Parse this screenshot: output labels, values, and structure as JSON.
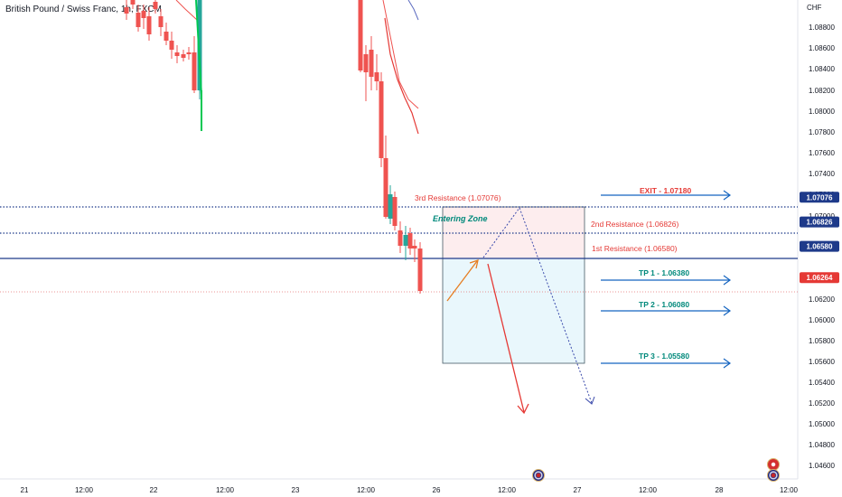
{
  "header": {
    "title": "British Pound / Swiss Franc, 1h, FXCM",
    "currency": "CHF"
  },
  "chart_data": {
    "type": "candlestick",
    "y_axis": {
      "range": [
        1.045,
        1.0895
      ],
      "ticks": [
        "1.08800",
        "1.08600",
        "1.08400",
        "1.08200",
        "1.08000",
        "1.07800",
        "1.07600",
        "1.07400",
        "1.07200",
        "1.07000",
        "1.06400",
        "1.06200",
        "1.06000",
        "1.05800",
        "1.05600",
        "1.05400",
        "1.05200",
        "1.05000",
        "1.04800",
        "1.04600"
      ]
    },
    "x_axis": {
      "ticks": [
        "21",
        "12:00",
        "22",
        "12:00",
        "23",
        "12:00",
        "26",
        "12:00",
        "27",
        "12:00",
        "28",
        "12:00"
      ]
    },
    "price_labels": [
      {
        "text": "1.07076",
        "value": 1.07076,
        "color": "#1e3a8a"
      },
      {
        "text": "1.06826",
        "value": 1.06826,
        "color": "#1e3a8a"
      },
      {
        "text": "1.06580",
        "value": 1.0658,
        "color": "#1e3a8a"
      },
      {
        "text": "1.06264",
        "value": 1.06264,
        "color": "#e53935"
      }
    ],
    "levels": [
      {
        "label": "3rd Resistance (1.07076)",
        "value": 1.07076,
        "style": "dotted",
        "color": "#1e3a8a"
      },
      {
        "label": "2nd Resistance (1.06826)",
        "value": 1.06826,
        "style": "dotted",
        "color": "#1e3a8a"
      },
      {
        "label": "1st Resistance (1.06580)",
        "value": 1.0658,
        "style": "solid",
        "color": "#1e3a8a"
      },
      {
        "label": "",
        "value": 1.06264,
        "style": "dotted",
        "color": "#e57373"
      }
    ],
    "targets": [
      {
        "label": "EXIT - 1.07180",
        "value": 1.0718,
        "color": "#e53935"
      },
      {
        "label": "TP 1 - 1.06380",
        "value": 1.0638,
        "color": "#00897b"
      },
      {
        "label": "TP 2 - 1.06080",
        "value": 1.0608,
        "color": "#00897b"
      },
      {
        "label": "TP 3 - 1.05580",
        "value": 1.0558,
        "color": "#00897b"
      }
    ],
    "zone": {
      "label": "Entering Zone",
      "top": 1.07076,
      "mid": 1.0658,
      "bottom": 1.0558
    },
    "colors": {
      "up": "#26a69a",
      "down": "#ef5350",
      "level": "#1e3a8a",
      "tp_arrow": "#1565c0"
    }
  }
}
